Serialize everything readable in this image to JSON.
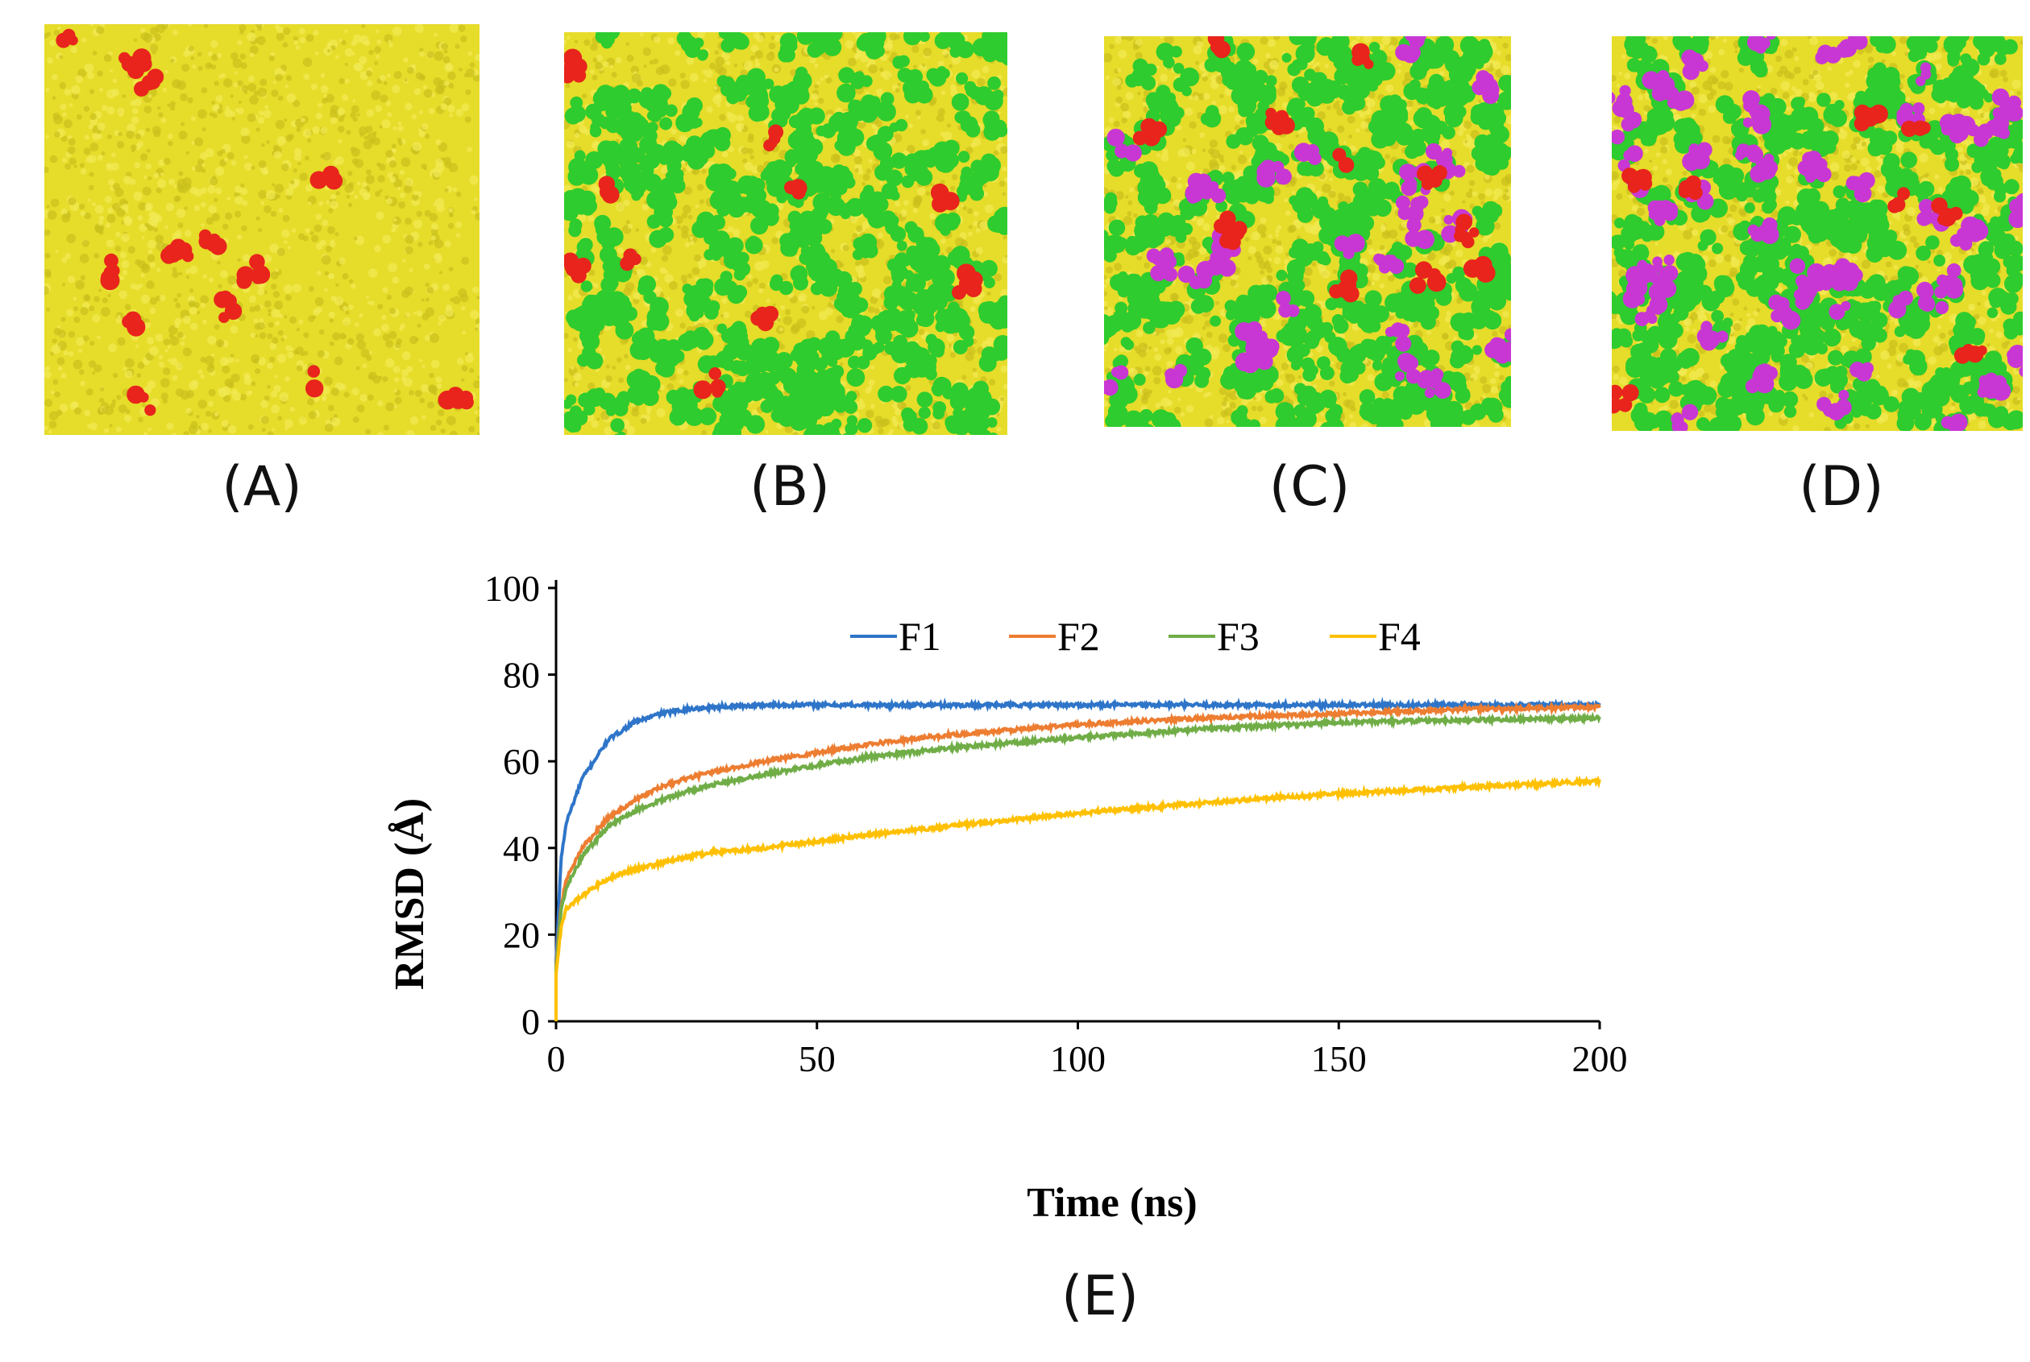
{
  "panels": [
    {
      "id": "A",
      "caption": "(A)",
      "colors": {
        "base": "#e6dc2a",
        "components": [
          "#e8241c"
        ]
      }
    },
    {
      "id": "B",
      "caption": "(B)",
      "colors": {
        "base": "#e6dc2a",
        "components": [
          "#2ecc2e",
          "#e8241c"
        ]
      }
    },
    {
      "id": "C",
      "caption": "(C)",
      "colors": {
        "base": "#e6dc2a",
        "components": [
          "#2ecc2e",
          "#c837d4",
          "#e8241c"
        ]
      }
    },
    {
      "id": "D",
      "caption": "(D)",
      "colors": {
        "base": "#e6dc2a",
        "components": [
          "#2ecc2e",
          "#c837d4",
          "#e8241c"
        ]
      }
    }
  ],
  "caption_e": "(E)",
  "chart_data": {
    "type": "line",
    "xlabel": "Time (ns)",
    "ylabel": "RMSD (Å)",
    "xlim": [
      0,
      200
    ],
    "ylim": [
      0,
      100
    ],
    "xticks": [
      "0",
      "50",
      "100",
      "150",
      "200"
    ],
    "yticks": [
      "0",
      "20",
      "40",
      "60",
      "80",
      "100"
    ],
    "grid": false,
    "legend_position": "top",
    "x": [
      0,
      1,
      2,
      5,
      10,
      15,
      20,
      25,
      30,
      40,
      50,
      60,
      75,
      100,
      125,
      150,
      175,
      200
    ],
    "series": [
      {
        "name": "F1",
        "color": "#2e75c9",
        "values": [
          14,
          38,
          46,
          56,
          65,
          69,
          71,
          72,
          72.5,
          73,
          73,
          73,
          73,
          73,
          73,
          73,
          73,
          73
        ]
      },
      {
        "name": "F2",
        "color": "#ed7d31",
        "values": [
          13,
          27,
          33,
          40,
          47,
          51,
          54,
          56,
          57.5,
          60,
          62,
          64,
          66,
          68.5,
          70,
          71,
          72,
          72.5
        ]
      },
      {
        "name": "F3",
        "color": "#70ad47",
        "values": [
          12,
          26,
          31,
          38,
          45,
          48.5,
          51,
          53,
          54.5,
          57,
          59,
          61,
          63,
          65.5,
          67.5,
          69,
          69.5,
          70
        ]
      },
      {
        "name": "F4",
        "color": "#ffc000",
        "values": [
          11,
          22,
          26,
          29,
          33,
          35,
          36.5,
          38,
          39,
          40,
          41.5,
          43,
          45,
          48,
          50.5,
          52.5,
          54,
          55.5
        ]
      }
    ]
  }
}
